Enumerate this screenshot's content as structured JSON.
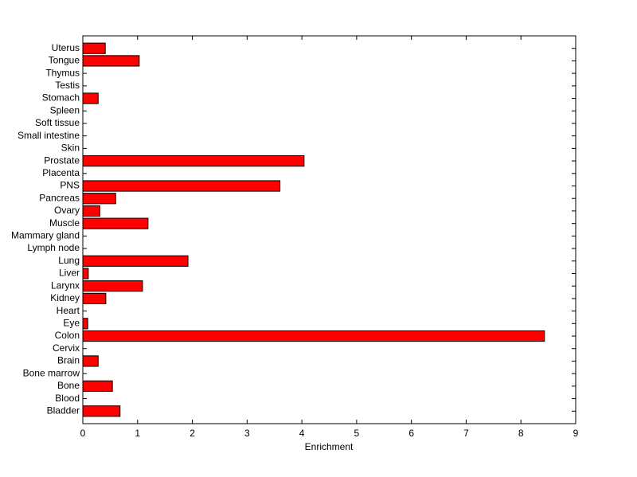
{
  "chart_data": {
    "type": "barh",
    "xlabel": "Enrichment",
    "categories": [
      "Bladder",
      "Blood",
      "Bone",
      "Bone marrow",
      "Brain",
      "Cervix",
      "Colon",
      "Eye",
      "Heart",
      "Kidney",
      "Larynx",
      "Liver",
      "Lung",
      "Lymph node",
      "Mammary gland",
      "Muscle",
      "Ovary",
      "Pancreas",
      "PNS",
      "Placenta",
      "Prostate",
      "Skin",
      "Small intestine",
      "Soft tissue",
      "Spleen",
      "Stomach",
      "Testis",
      "Thymus",
      "Tongue",
      "Uterus"
    ],
    "values": [
      0.68,
      0,
      0.54,
      0,
      0.28,
      0,
      8.43,
      0.09,
      0,
      0.42,
      1.09,
      0.1,
      1.92,
      0,
      0,
      1.19,
      0.31,
      0.6,
      3.6,
      0,
      4.04,
      0,
      0,
      0,
      0,
      0.28,
      0,
      0,
      1.03,
      0.41
    ],
    "color": "#ff0000",
    "xlim": [
      0,
      9
    ],
    "xticks": [
      0,
      1,
      2,
      3,
      4,
      5,
      6,
      7,
      8,
      9
    ]
  }
}
